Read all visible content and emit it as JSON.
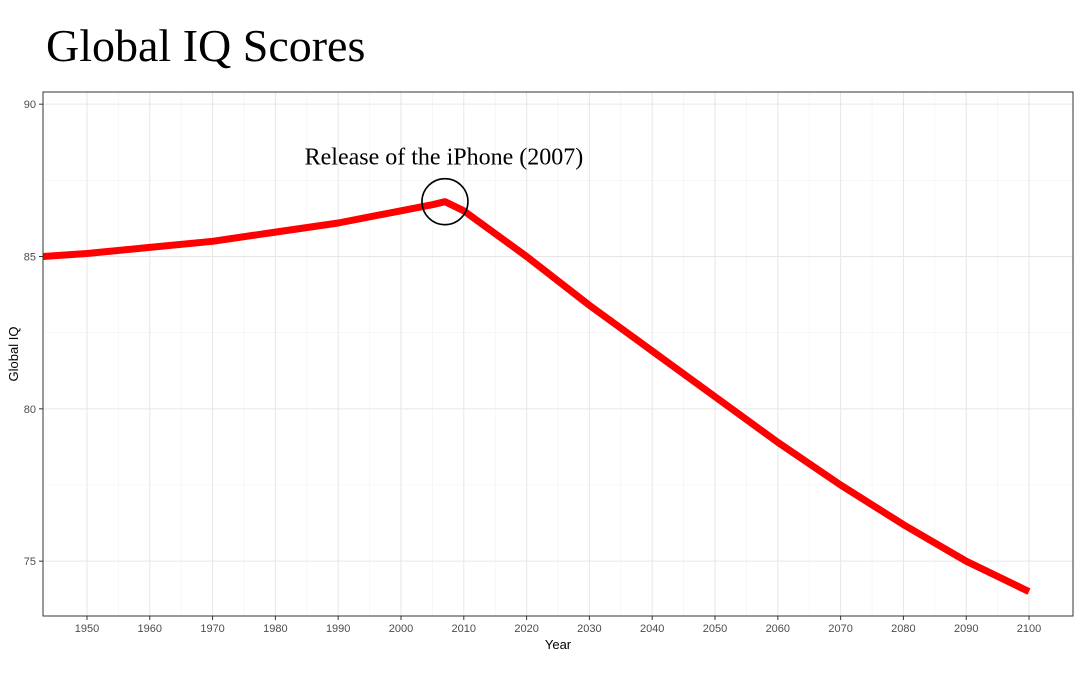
{
  "title": "Global IQ Scores",
  "chart_data": {
    "type": "line",
    "title": "Global IQ Scores",
    "xlabel": "Year",
    "ylabel": "Global IQ",
    "xlim": [
      1943,
      2107
    ],
    "ylim": [
      73.2,
      90.4
    ],
    "x_ticks": [
      1950,
      1960,
      1970,
      1980,
      1990,
      2000,
      2010,
      2020,
      2030,
      2040,
      2050,
      2060,
      2070,
      2080,
      2090,
      2100
    ],
    "y_ticks": [
      75,
      80,
      85,
      90
    ],
    "grid": true,
    "series": [
      {
        "color": "#ff0000",
        "x": [
          1943,
          1950,
          1960,
          1970,
          1980,
          1990,
          2000,
          2005,
          2007,
          2010,
          2020,
          2030,
          2040,
          2050,
          2060,
          2070,
          2080,
          2090,
          2100
        ],
        "y": [
          85.0,
          85.1,
          85.3,
          85.5,
          85.8,
          86.1,
          86.5,
          86.7,
          86.8,
          86.5,
          85.0,
          83.4,
          81.9,
          80.4,
          78.9,
          77.5,
          76.2,
          75.0,
          74.0
        ]
      }
    ],
    "annotations": [
      {
        "text": "Release of the iPhone (2007)",
        "x": 2007,
        "y": 86.8
      }
    ]
  }
}
